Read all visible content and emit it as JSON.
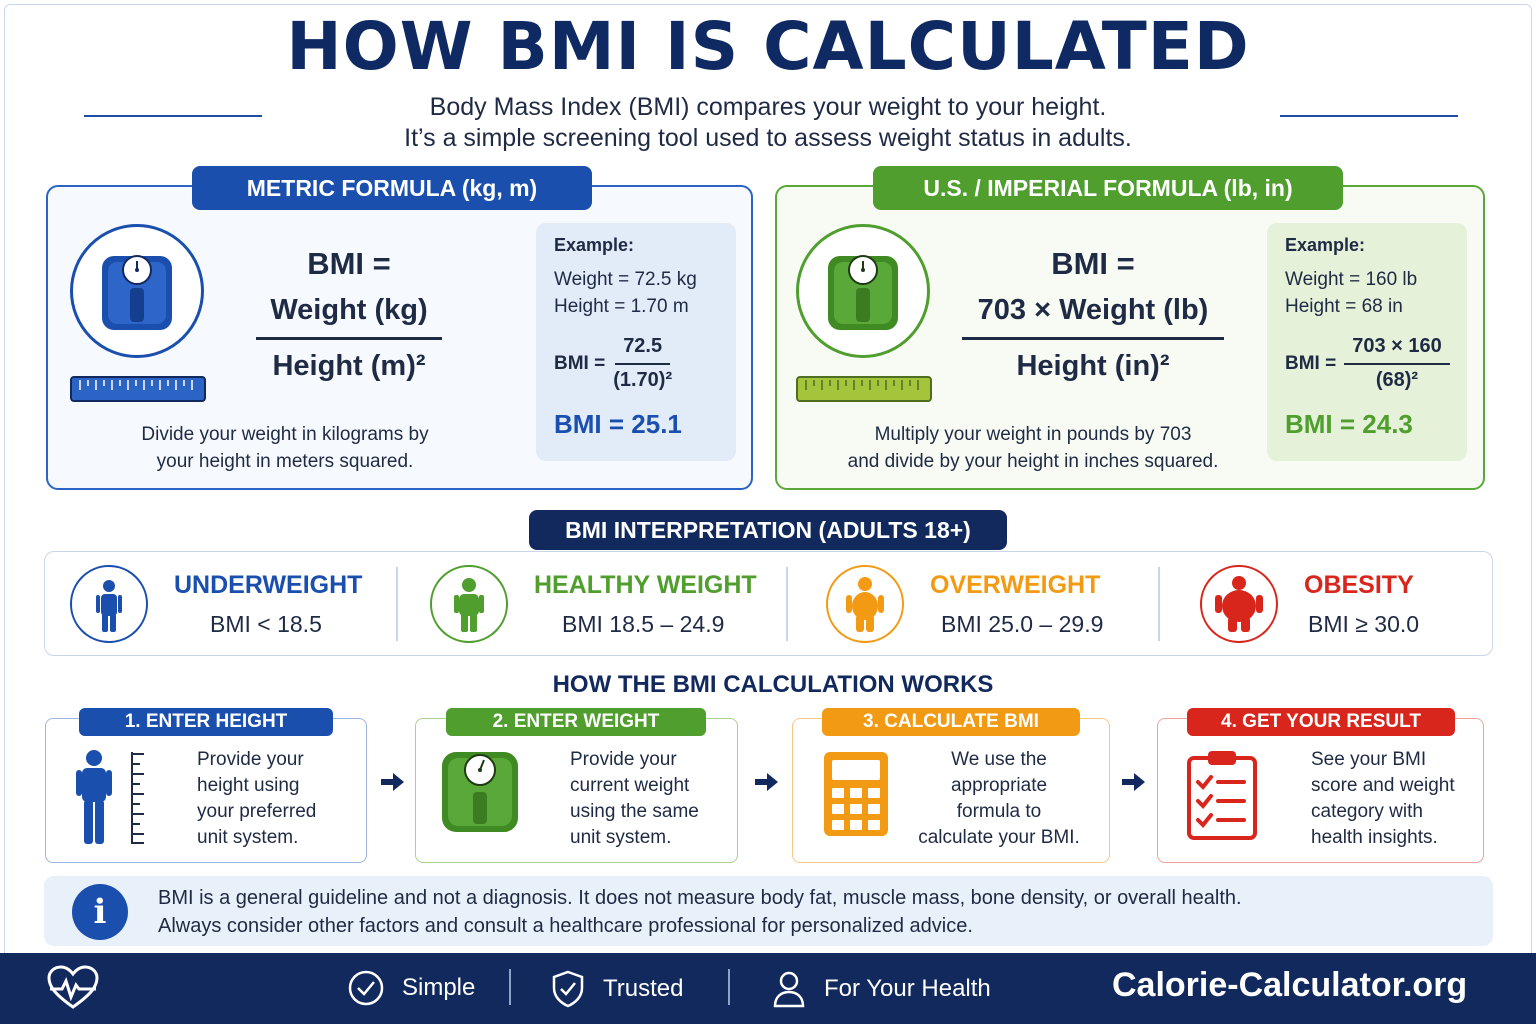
{
  "header": {
    "title": "HOW BMI IS CALCULATED",
    "subtitle_line1": "Body Mass Index (BMI) compares your weight to your height.",
    "subtitle_line2": "It’s a simple screening tool used to assess weight status in adults."
  },
  "metric": {
    "tab": "METRIC FORMULA (kg, m)",
    "formula_lhs": "BMI =",
    "numerator": "Weight (kg)",
    "denominator": "Height (m)²",
    "description_line1": "Divide your weight in kilograms by",
    "description_line2": "your height in meters squared.",
    "example": {
      "title": "Example:",
      "line1": "Weight = 72.5 kg",
      "line2": "Height = 1.70 m",
      "calc_label": "BMI =",
      "calc_num": "72.5",
      "calc_den": "(1.70)²",
      "result": "BMI = 25.1"
    },
    "icon": "scale-icon"
  },
  "imperial": {
    "tab": "U.S. / IMPERIAL FORMULA (lb, in)",
    "formula_lhs": "BMI =",
    "numerator": "703 × Weight (lb)",
    "denominator": "Height (in)²",
    "description_line1": "Multiply your weight in pounds by 703",
    "description_line2": "and divide by your height in inches squared.",
    "example": {
      "title": "Example:",
      "line1": "Weight = 160 lb",
      "line2": "Height = 68 in",
      "calc_label": "BMI =",
      "calc_num": "703 × 160",
      "calc_den": "(68)²",
      "result": "BMI = 24.3"
    },
    "icon": "scale-icon"
  },
  "interpretation": {
    "title": "BMI INTERPRETATION (ADULTS 18+)",
    "categories": [
      {
        "name": "UNDERWEIGHT",
        "range": "BMI < 18.5",
        "color": "#1b4fae"
      },
      {
        "name": "HEALTHY WEIGHT",
        "range": "BMI 18.5 – 24.9",
        "color": "#4f9e2e"
      },
      {
        "name": "OVERWEIGHT",
        "range": "BMI 25.0 – 29.9",
        "color": "#f29a14"
      },
      {
        "name": "OBESITY",
        "range": "BMI ≥ 30.0",
        "color": "#d9261c"
      }
    ]
  },
  "steps": {
    "title": "HOW THE BMI CALCULATION WORKS",
    "items": [
      {
        "tab": "1. ENTER HEIGHT",
        "l1": "Provide your",
        "l2": "height using",
        "l3": "your preferred",
        "l4": "unit system.",
        "color": "#1b4fae",
        "icon": "person-height-icon"
      },
      {
        "tab": "2. ENTER WEIGHT",
        "l1": "Provide your",
        "l2": "current weight",
        "l3": "using the same",
        "l4": "unit system.",
        "color": "#4f9e2e",
        "icon": "scale-icon"
      },
      {
        "tab": "3. CALCULATE BMI",
        "l1": "We use the",
        "l2": "appropriate",
        "l3": "formula to",
        "l4": "calculate your BMI.",
        "color": "#f29a14",
        "icon": "calculator-icon"
      },
      {
        "tab": "4. GET YOUR RESULT",
        "l1": "See your BMI",
        "l2": "score and weight",
        "l3": "category with",
        "l4": "health insights.",
        "color": "#d9261c",
        "icon": "clipboard-checklist-icon"
      }
    ]
  },
  "note": {
    "line1": "BMI is a general guideline and not a diagnosis. It does not measure body fat, muscle mass, bone density, or overall health.",
    "line2": "Always consider other factors and consult a healthcare professional for personalized advice.",
    "icon": "info-icon"
  },
  "footer": {
    "simple": "Simple",
    "trusted": "Trusted",
    "health": "For Your Health",
    "brand": "Calorie-Calculator.org"
  }
}
